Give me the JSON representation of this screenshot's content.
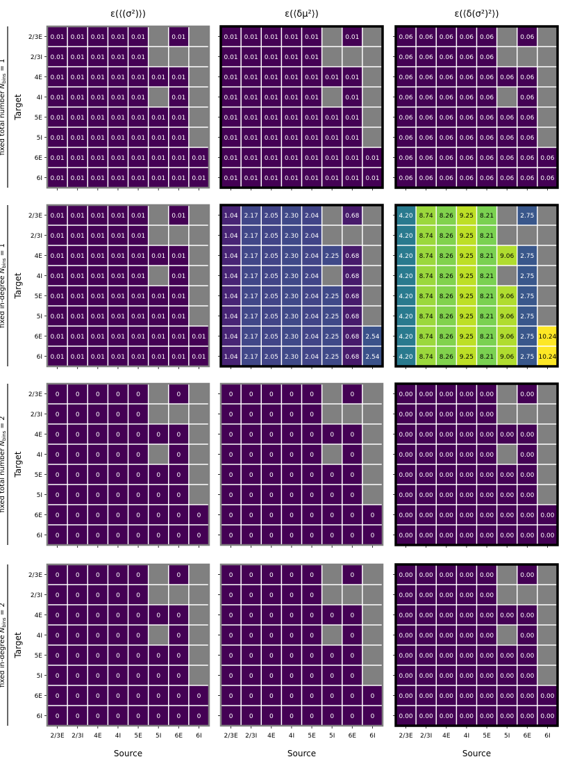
{
  "figure": {
    "column_titles": [
      "ε(⟨(σ²)⟩)",
      "ε(⟨δμ²⟩)",
      "ε(⟨δ(σ²)²⟩)"
    ],
    "row_labels": [
      [
        "fixed total number ",
        "N",
        "bins",
        " = 1"
      ],
      [
        "fixed in-degree ",
        "N",
        "bins",
        " = 1"
      ],
      [
        "fixed total number ",
        "N",
        "bins",
        " = 2"
      ],
      [
        "fixed in-degree ",
        "N",
        "bins",
        " = 2"
      ]
    ],
    "y_axis_label": "Target",
    "x_axis_label": "Source",
    "target_labels": [
      "2/3E",
      "2/3I",
      "4E",
      "4I",
      "5E",
      "5I",
      "6E",
      "6I"
    ],
    "source_labels": [
      "2/3E",
      "2/3I",
      "4E",
      "4I",
      "5E",
      "5I",
      "6E",
      "6I"
    ],
    "missing_cells": [
      [
        0,
        5
      ],
      [
        0,
        7
      ],
      [
        1,
        5
      ],
      [
        1,
        6
      ],
      [
        1,
        7
      ],
      [
        2,
        7
      ],
      [
        3,
        5
      ],
      [
        3,
        7
      ],
      [
        4,
        7
      ],
      [
        5,
        7
      ]
    ],
    "highlighted_panels": [
      [
        0,
        1
      ],
      [
        0,
        2
      ],
      [
        1,
        1
      ],
      [
        1,
        2
      ],
      [
        2,
        2
      ],
      [
        3,
        2
      ]
    ],
    "colors": {
      "missing": "#808080",
      "frame_normal": "#808080",
      "frame_highlight": "#000000",
      "grid_lines": "#ffffff",
      "label_light": "#ffffff",
      "label_dark": "#000000"
    }
  },
  "chart_data": {
    "type": "heatmap",
    "colormap": "viridis",
    "panels": [
      {
        "row": 0,
        "col": 0,
        "value_label": "0.01",
        "cell_value": 0.01,
        "color_fraction": 0.0
      },
      {
        "row": 0,
        "col": 1,
        "value_label": "0.01",
        "cell_value": 0.01,
        "color_fraction": 0.0
      },
      {
        "row": 0,
        "col": 2,
        "value_label": "0.06",
        "cell_value": 0.06,
        "color_fraction": 0.0
      },
      {
        "row": 1,
        "col": 0,
        "value_label": "0.01",
        "cell_value": 0.01,
        "color_fraction": 0.0
      },
      {
        "row": 1,
        "col": 1,
        "source_labels": [
          "1.04",
          "2.17",
          "2.05",
          "2.30",
          "2.04",
          "2.25",
          "0.68",
          "2.54"
        ],
        "source_values": [
          1.04,
          2.17,
          2.05,
          2.3,
          2.04,
          2.25,
          0.68,
          2.54
        ],
        "source_color_fractions": [
          0.1,
          0.21,
          0.2,
          0.22,
          0.2,
          0.22,
          0.07,
          0.25
        ]
      },
      {
        "row": 1,
        "col": 2,
        "source_labels": [
          "4.20",
          "8.74",
          "8.26",
          "9.25",
          "8.21",
          "9.06",
          "2.75",
          "10.24"
        ],
        "source_values": [
          4.2,
          8.74,
          8.26,
          9.25,
          8.21,
          9.06,
          2.75,
          10.24
        ],
        "source_color_fractions": [
          0.41,
          0.85,
          0.81,
          0.9,
          0.8,
          0.88,
          0.27,
          1.0
        ]
      },
      {
        "row": 2,
        "col": 0,
        "value_label": "0",
        "cell_value": 0,
        "color_fraction": 0.0
      },
      {
        "row": 2,
        "col": 1,
        "value_label": "0",
        "cell_value": 0,
        "color_fraction": 0.0
      },
      {
        "row": 2,
        "col": 2,
        "value_label": "0.00",
        "cell_value": 0.0,
        "color_fraction": 0.0
      },
      {
        "row": 3,
        "col": 0,
        "value_label": "0",
        "cell_value": 0,
        "color_fraction": 0.0
      },
      {
        "row": 3,
        "col": 1,
        "value_label": "0",
        "cell_value": 0,
        "color_fraction": 0.0
      },
      {
        "row": 3,
        "col": 2,
        "value_label": "0.00",
        "cell_value": 0.0,
        "color_fraction": 0.0
      }
    ]
  }
}
